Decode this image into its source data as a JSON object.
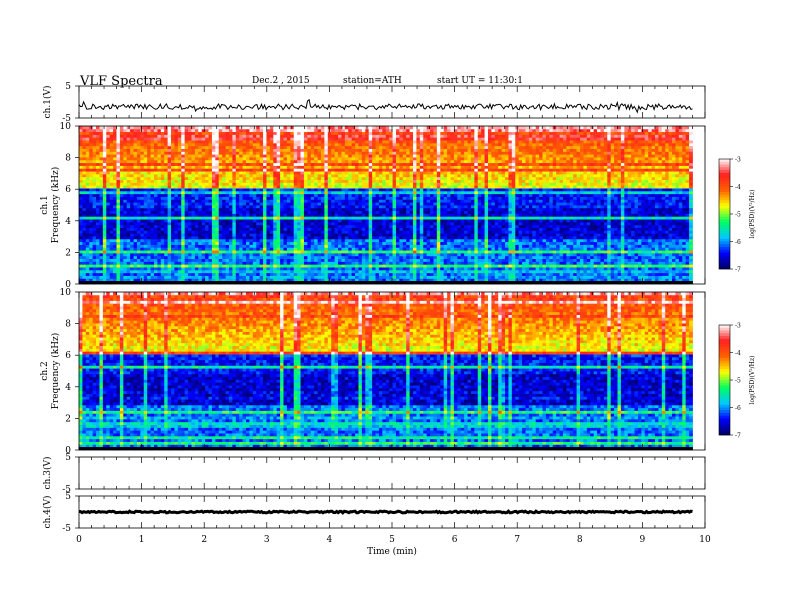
{
  "header": {
    "title": "VLF  Spectra",
    "date": "Dec.2  , 2015",
    "station": "station=ATH",
    "start": "start  UT  =    11:30:1"
  },
  "chart_data": {
    "type": "heatmap",
    "xlabel": "Time  (min)",
    "xlim": [
      0,
      10
    ],
    "x_ticks": [
      "0",
      "1",
      "2",
      "3",
      "4",
      "5",
      "6",
      "7",
      "8",
      "9",
      "10"
    ],
    "panels": [
      {
        "id": "ch1v",
        "type": "line",
        "ylabel": "ch.1(V)",
        "ylim": [
          -5,
          5
        ],
        "y_ticks": [
          "5",
          "-5"
        ],
        "baseline": -1.5,
        "noise": "high"
      },
      {
        "id": "ch1f",
        "type": "heatmap",
        "ylabel_top": "ch.1",
        "ylabel": "Frequency  (kHz)",
        "ylim": [
          0,
          10
        ],
        "y_ticks": [
          "0",
          "2",
          "4",
          "6",
          "8",
          "10"
        ],
        "x_end": 9.8,
        "colorbar": {
          "label": "log(PSD)(V²/Hz)",
          "range": [
            -7,
            -3
          ],
          "ticks": [
            "-3",
            "-4",
            "-5",
            "-6",
            "-7"
          ],
          "colors": [
            "#000060",
            "#0000ff",
            "#00c8ff",
            "#00ff60",
            "#ffff00",
            "#ff6000",
            "#ff2020",
            "#ffffff"
          ]
        }
      },
      {
        "id": "ch2f",
        "type": "heatmap",
        "ylabel_top": "ch.2",
        "ylabel": "Frequency  (kHz)",
        "ylim": [
          0,
          10
        ],
        "y_ticks": [
          "0",
          "2",
          "4",
          "6",
          "8",
          "10"
        ],
        "x_end": 9.8,
        "colorbar": {
          "label": "log(PSD)(V²/Hz)",
          "range": [
            -7,
            -3
          ],
          "ticks": [
            "-3",
            "-4",
            "-5",
            "-6",
            "-7"
          ],
          "colors": [
            "#000060",
            "#0000ff",
            "#00c8ff",
            "#00ff60",
            "#ffff00",
            "#ff6000",
            "#ff2020",
            "#ffffff"
          ]
        }
      },
      {
        "id": "ch3v",
        "type": "line",
        "ylabel": "ch.3(V)",
        "ylim": [
          -5,
          5
        ],
        "y_ticks": [
          "5",
          "-5"
        ],
        "baseline": null
      },
      {
        "id": "ch4v",
        "type": "line",
        "ylabel": "ch.4(V)",
        "ylim": [
          -5,
          5
        ],
        "y_ticks": [
          "5",
          "-5"
        ],
        "baseline": 0.0,
        "noise": "low"
      }
    ]
  }
}
